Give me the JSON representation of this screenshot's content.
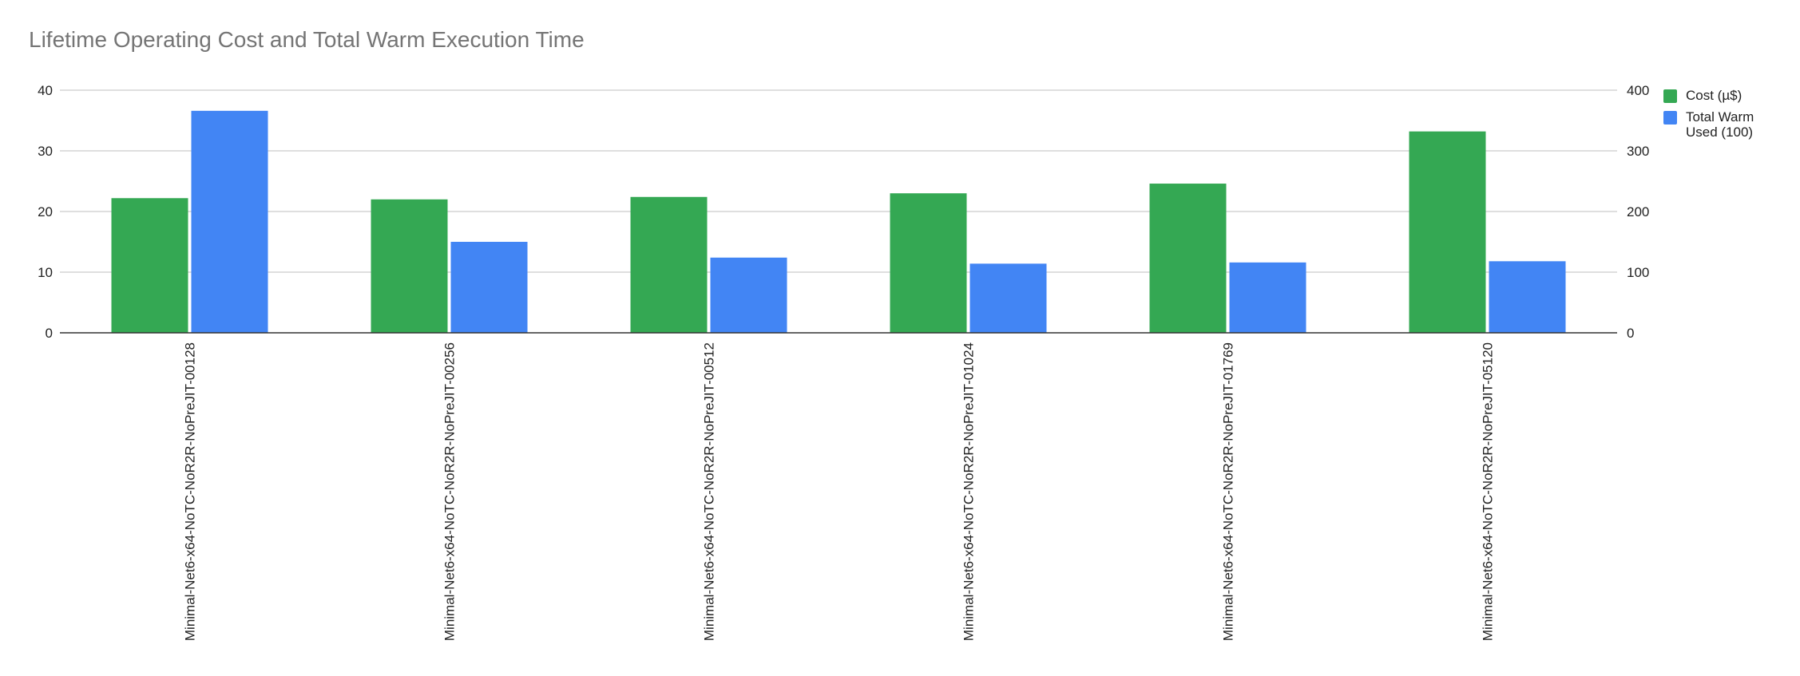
{
  "chart_data": {
    "type": "bar",
    "title": "Lifetime Operating Cost and Total Warm Execution Time",
    "categories": [
      "Minimal-Net6-x64-NoTC-NoR2R-NoPreJIT-00128",
      "Minimal-Net6-x64-NoTC-NoR2R-NoPreJIT-00256",
      "Minimal-Net6-x64-NoTC-NoR2R-NoPreJIT-00512",
      "Minimal-Net6-x64-NoTC-NoR2R-NoPreJIT-01024",
      "Minimal-Net6-x64-NoTC-NoR2R-NoPreJIT-01769",
      "Minimal-Net6-x64-NoTC-NoR2R-NoPreJIT-05120"
    ],
    "series": [
      {
        "name": "Cost (µ$)",
        "axis": "left",
        "color": "#34a853",
        "values": [
          22.2,
          22.0,
          22.4,
          23.0,
          24.6,
          33.2
        ]
      },
      {
        "name": "Total Warm Used (100)",
        "axis": "right",
        "color": "#4285f4",
        "values": [
          366,
          150,
          124,
          114,
          116,
          118
        ]
      }
    ],
    "left_axis": {
      "ylim": [
        0,
        40
      ],
      "ticks": [
        "0",
        "10",
        "20",
        "30",
        "40"
      ]
    },
    "right_axis": {
      "ylim": [
        0,
        400
      ],
      "ticks": [
        "0",
        "100",
        "200",
        "300",
        "400"
      ]
    },
    "grid": true,
    "legend_position": "right"
  },
  "legend": {
    "items": [
      {
        "label": "Cost (µ$)",
        "color": "#34a853"
      },
      {
        "label": "Total Warm\nUsed (100)",
        "color": "#4285f4"
      }
    ]
  }
}
